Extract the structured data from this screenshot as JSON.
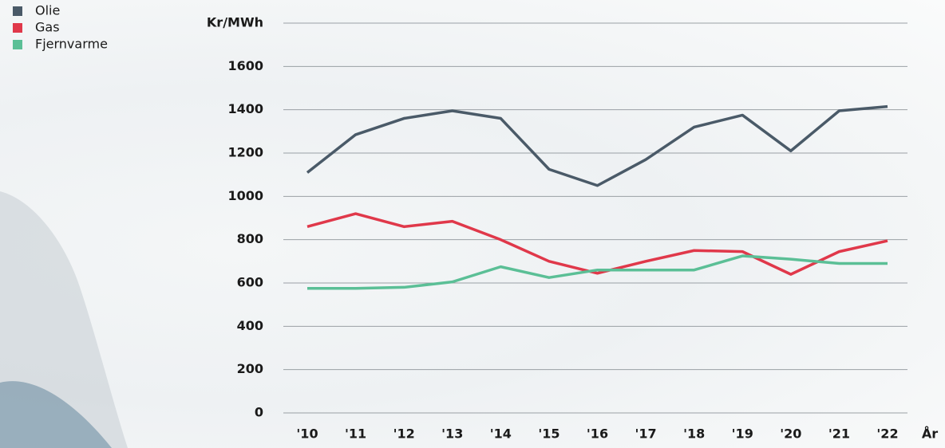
{
  "chart_data": {
    "type": "line",
    "x_label": "År",
    "categories": [
      "'10",
      "'11",
      "'12",
      "'13",
      "'14",
      "'15",
      "'16",
      "'17",
      "'18",
      "'19",
      "'20",
      "'21",
      "'22"
    ],
    "series": [
      {
        "name": "Olie",
        "color": "#4a5a68",
        "values": [
          1110,
          1285,
          1360,
          1395,
          1360,
          1125,
          1050,
          1170,
          1320,
          1375,
          1210,
          1395,
          1415
        ]
      },
      {
        "name": "Gas",
        "color": "#e0384a",
        "values": [
          860,
          920,
          860,
          885,
          800,
          700,
          645,
          700,
          750,
          745,
          640,
          745,
          795
        ]
      },
      {
        "name": "Fjernvarme",
        "color": "#5bbf96",
        "values": [
          575,
          575,
          580,
          605,
          675,
          625,
          660,
          660,
          660,
          725,
          710,
          690,
          690
        ]
      }
    ],
    "ylim": [
      0,
      1800
    ],
    "yticks": [
      0,
      200,
      400,
      600,
      800,
      1000,
      1200,
      1400,
      1600,
      {
        "value": 1800,
        "label": "Kr/MWh"
      }
    ],
    "grid": true
  }
}
